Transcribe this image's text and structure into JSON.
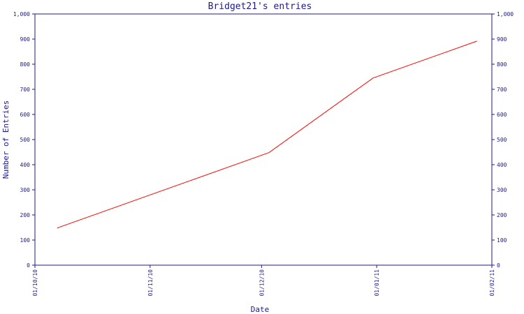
{
  "chart_data": {
    "type": "line",
    "title": "Bridget21's entries",
    "xlabel": "Date",
    "ylabel": "Number of Entries",
    "x_ticks": [
      "01/10/10",
      "01/11/10",
      "01/12/10",
      "01/01/11",
      "01/02/11"
    ],
    "x_tick_dates": [
      "2010-10-01",
      "2010-11-01",
      "2010-12-01",
      "2011-01-01",
      "2011-02-01"
    ],
    "xlim": [
      "2010-10-01",
      "2011-02-01"
    ],
    "y_ticks": [
      "0",
      "100",
      "200",
      "300",
      "400",
      "500",
      "600",
      "700",
      "800",
      "900",
      "1,000"
    ],
    "ylim": [
      0,
      1000
    ],
    "grid": false,
    "series": [
      {
        "color": "#ff0000",
        "x": [
          "2010-10-07",
          "2010-12-03",
          "2010-12-31",
          "2011-01-28"
        ],
        "y": [
          148,
          448,
          745,
          892
        ]
      }
    ]
  },
  "colors": {
    "axis": "#1a1a8c",
    "line": "#ff0000",
    "background": "#ffffff"
  }
}
